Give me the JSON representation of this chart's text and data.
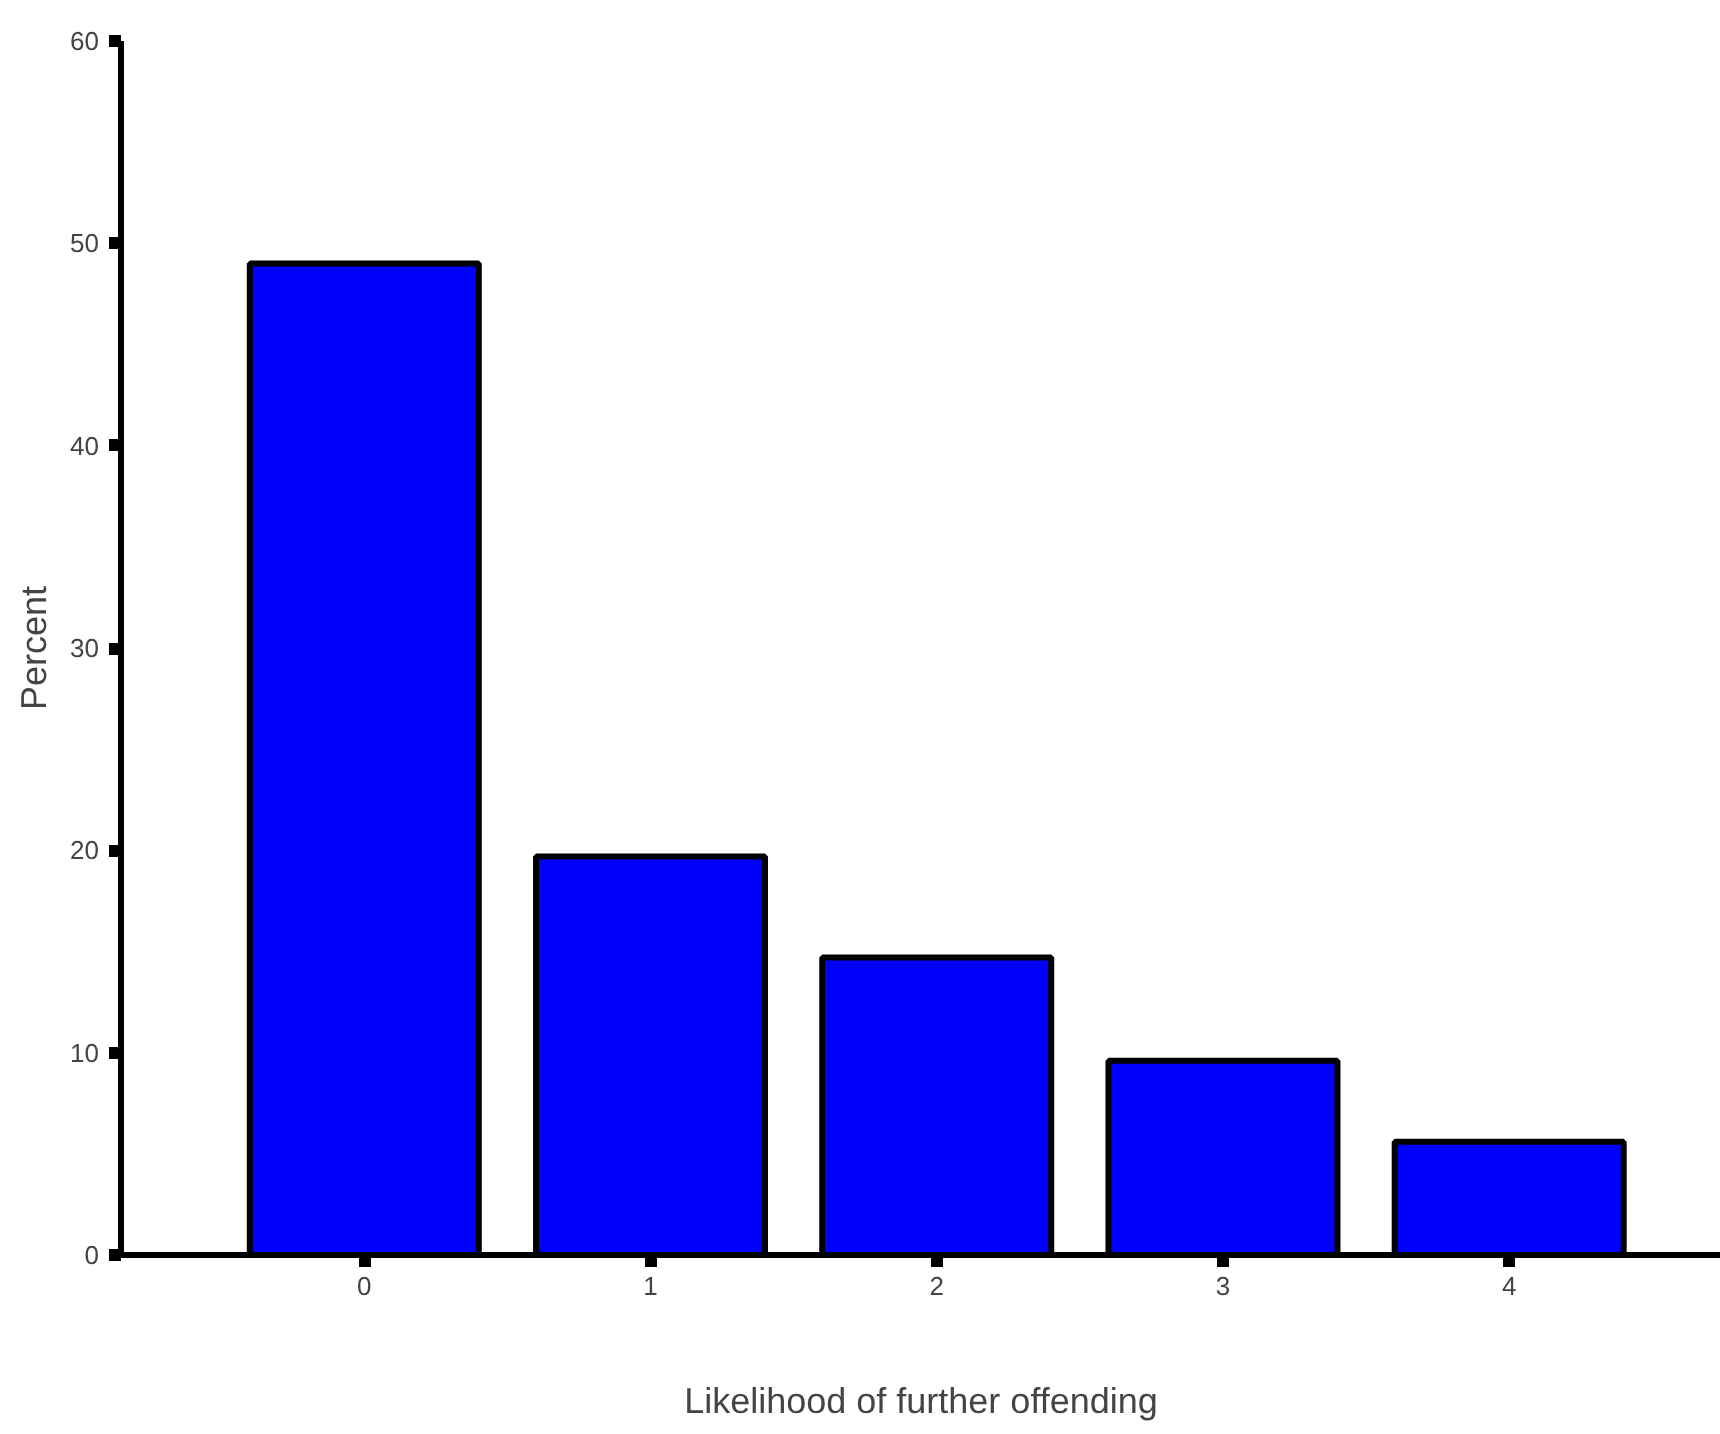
{
  "chart_data": {
    "type": "bar",
    "xlabel": "Likelihood of further offending",
    "ylabel": "Percent",
    "categories": [
      "0",
      "1",
      "2",
      "3",
      "4"
    ],
    "values": [
      49.0,
      19.7,
      14.7,
      9.6,
      5.6
    ],
    "color": "#0000ff",
    "ylim": [
      0,
      60
    ],
    "yticks": [
      0,
      10,
      20,
      30,
      40,
      50,
      60
    ],
    "grid": false
  }
}
